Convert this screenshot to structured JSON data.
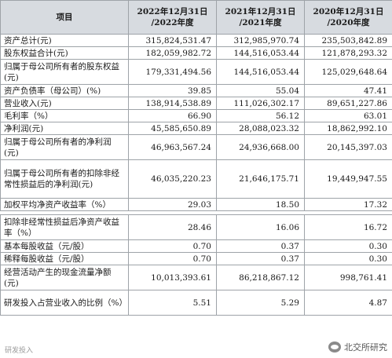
{
  "table": {
    "headers": {
      "item": "项目",
      "col1_line1": "2022年12月31日",
      "col1_line2": "/2022年度",
      "col2_line1": "2021年12月31日",
      "col2_line2": "/2021年度",
      "col3_line1": "2020年12月31日",
      "col3_line2": "/2020年度"
    },
    "rows": [
      {
        "label": "资产总计(元)",
        "v2022": "315,824,531.47",
        "v2021": "312,985,970.74",
        "v2020": "235,503,842.89"
      },
      {
        "label": "股东权益合计(元)",
        "v2022": "182,059,982.72",
        "v2021": "144,516,053.44",
        "v2020": "121,878,293.32"
      },
      {
        "label": "归属于母公司所有者的股东权益(元)",
        "v2022": "179,331,494.56",
        "v2021": "144,516,053.44",
        "v2020": "125,029,648.64"
      },
      {
        "label": "资产负债率（母公司）(%)",
        "v2022": "39.85",
        "v2021": "55.04",
        "v2020": "47.41"
      },
      {
        "label": "营业收入(元)",
        "v2022": "138,914,538.89",
        "v2021": "111,026,302.17",
        "v2020": "89,651,227.86"
      },
      {
        "label": "毛利率（%）",
        "v2022": "66.90",
        "v2021": "56.12",
        "v2020": "63.01"
      },
      {
        "label": "净利润(元)",
        "v2022": "45,585,650.89",
        "v2021": "28,088,023.32",
        "v2020": "18,862,992.10"
      },
      {
        "label": "归属于母公司所有者的净利润(元)",
        "v2022": "46,963,567.24",
        "v2021": "24,936,668.00",
        "v2020": "20,145,397.03"
      },
      {
        "label": "归属于母公司所有者的扣除非经常性损益后的净利润(元)",
        "v2022": "46,035,220.23",
        "v2021": "21,646,175.71",
        "v2020": "19,449,947.55"
      },
      {
        "label": "加权平均净资产收益率（%）",
        "v2022": "29.03",
        "v2021": "18.50",
        "v2020": "17.32"
      },
      {
        "label": "扣除非经常性损益后净资产收益率（%）",
        "v2022": "28.46",
        "v2021": "16.06",
        "v2020": "16.72"
      },
      {
        "label": "基本每股收益（元/股）",
        "v2022": "0.70",
        "v2021": "0.37",
        "v2020": "0.30"
      },
      {
        "label": "稀释每股收益（元/股）",
        "v2022": "0.70",
        "v2021": "0.37",
        "v2020": "0.30"
      },
      {
        "label": "经营活动产生的现金流量净额(元)",
        "v2022": "10,013,393.61",
        "v2021": "86,218,867.12",
        "v2020": "998,761.41"
      },
      {
        "label": "研发投入占营业收入的比例（%）",
        "v2022": "5.51",
        "v2021": "5.29",
        "v2020": "4.87"
      }
    ]
  },
  "watermark": {
    "text": "北交所研究",
    "left_text": "研发投入"
  }
}
